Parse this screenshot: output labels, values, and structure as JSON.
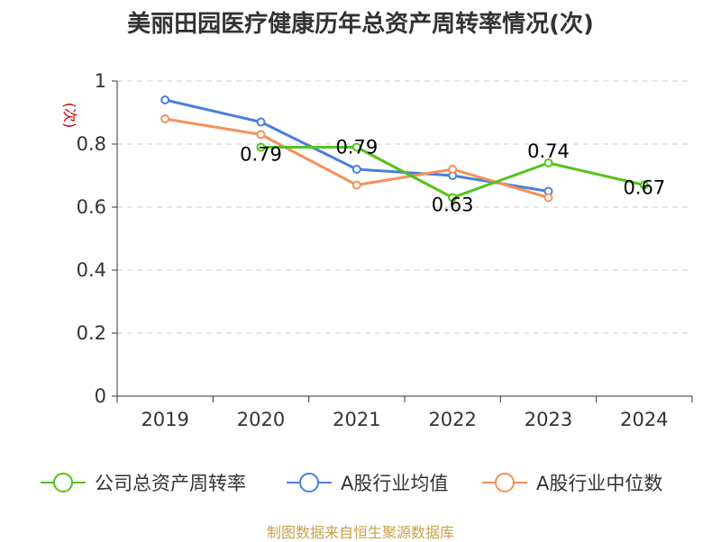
{
  "chart_data": {
    "type": "line",
    "title": "美丽田园医疗健康历年总资产周转率情况(次)",
    "ylabel": "(次)",
    "xlabel": "",
    "categories": [
      "2019",
      "2020",
      "2021",
      "2022",
      "2023",
      "2024"
    ],
    "ylim": [
      0,
      1
    ],
    "yticks": [
      "0",
      "0.2",
      "0.4",
      "0.6",
      "0.8",
      "1"
    ],
    "grid": true,
    "legend_position": "bottom",
    "series": [
      {
        "name": "公司总资产周转率",
        "color": "#52c41a",
        "values": [
          null,
          0.79,
          0.79,
          0.63,
          0.74,
          0.67
        ],
        "labels": [
          "",
          "0.79",
          "0.79",
          "0.63",
          "0.74",
          "0.67"
        ]
      },
      {
        "name": "A股行业均值",
        "color": "#4a7fdc",
        "values": [
          0.94,
          0.87,
          0.72,
          0.7,
          0.65,
          null
        ]
      },
      {
        "name": "A股行业中位数",
        "color": "#f5905a",
        "values": [
          0.88,
          0.83,
          0.67,
          0.72,
          0.63,
          null
        ]
      }
    ]
  },
  "source": "制图数据来自恒生聚源数据库"
}
